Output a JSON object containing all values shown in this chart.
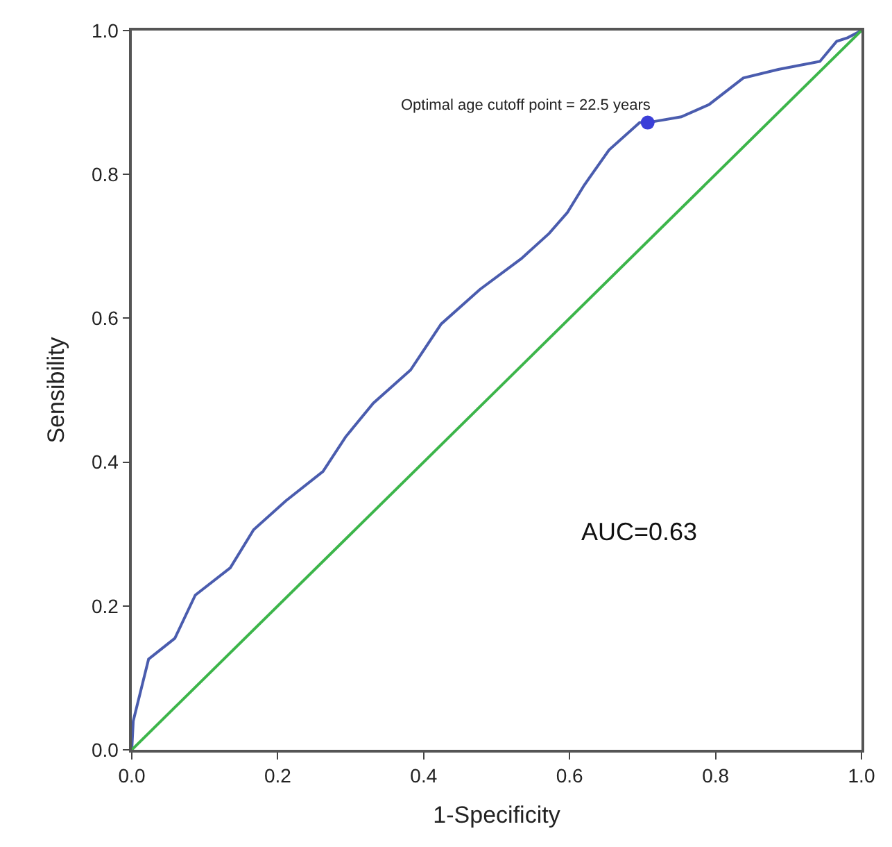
{
  "chart_data": {
    "type": "line",
    "xlabel": "1-Specificity",
    "ylabel": "Sensibility",
    "xlim": [
      0,
      1
    ],
    "ylim": [
      0,
      1
    ],
    "xticks": [
      {
        "value": 0,
        "label": "0.0"
      },
      0.2,
      0.4,
      0.6,
      0.8,
      {
        "value": 1,
        "label": "1.0"
      }
    ],
    "yticks": [
      {
        "value": 0,
        "label": "0.0"
      },
      0.2,
      0.4,
      0.6,
      0.8,
      {
        "value": 1,
        "label": "1.0"
      }
    ],
    "marker": "none",
    "line_style": "solid",
    "series": [
      {
        "color": "#4a5cae",
        "x": [
          0,
          0.002,
          0.023,
          0.059,
          0.087,
          0.135,
          0.167,
          0.211,
          0.262,
          0.293,
          0.331,
          0.382,
          0.424,
          0.477,
          0.534,
          0.572,
          0.597,
          0.62,
          0.654,
          0.696,
          0.707,
          0.753,
          0.791,
          0.838,
          0.886,
          0.943,
          0.966,
          0.981,
          1
        ],
        "values": [
          0,
          0.04,
          0.126,
          0.155,
          0.215,
          0.253,
          0.306,
          0.346,
          0.387,
          0.435,
          0.482,
          0.528,
          0.592,
          0.64,
          0.683,
          0.718,
          0.747,
          0.785,
          0.834,
          0.872,
          0.872,
          0.88,
          0.897,
          0.934,
          0.946,
          0.957,
          0.985,
          0.99,
          1
        ]
      },
      {
        "color": "#3cb54a",
        "x": [
          0,
          1
        ],
        "values": [
          0,
          1
        ]
      },
      {
        "type": "scatter",
        "marker": "circle",
        "color": "#3b3fd8",
        "x": [
          0.707
        ],
        "values": [
          0.872
        ]
      }
    ],
    "annotations": [
      {
        "text": "Optimal age cutoff point = 22.5 years",
        "x": 0.707,
        "y": 0.872
      },
      "AUC=0.63"
    ]
  }
}
